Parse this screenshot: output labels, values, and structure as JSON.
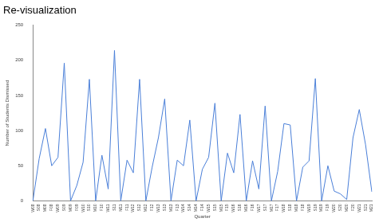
{
  "chart_data": {
    "type": "line",
    "title": "Re-visualization",
    "x_label": "Quarter",
    "y_label": "Number of Students Dismissed",
    "categories": [
      "W08",
      "S08",
      "M08",
      "F08",
      "W09",
      "S09",
      "M09",
      "F09",
      "W10",
      "S10",
      "M10",
      "F10",
      "W11",
      "S11",
      "M11",
      "F11",
      "W12",
      "S12",
      "M12",
      "F12",
      "W13",
      "S13",
      "M13",
      "F13",
      "W14",
      "S14",
      "M14",
      "F14",
      "W15",
      "S15",
      "M15",
      "F15",
      "W16",
      "S16",
      "M16",
      "F16",
      "W17",
      "S17",
      "M17",
      "F17",
      "W18",
      "S18",
      "M18",
      "F18",
      "W19",
      "S19",
      "M19",
      "F19",
      "W20",
      "S20",
      "M20",
      "F20",
      "W21",
      "S21",
      "M21"
    ],
    "values": [
      0,
      60,
      103,
      50,
      62,
      196,
      0,
      22,
      55,
      173,
      0,
      65,
      17,
      214,
      0,
      58,
      40,
      173,
      0,
      48,
      90,
      145,
      0,
      58,
      50,
      115,
      0,
      45,
      62,
      139,
      0,
      68,
      40,
      123,
      0,
      57,
      17,
      135,
      0,
      42,
      110,
      108,
      0,
      48,
      57,
      174,
      0,
      50,
      14,
      10,
      2,
      90,
      130,
      80,
      13
    ],
    "color": "#4a7fd8",
    "ylim": [
      0,
      250
    ],
    "yticks": [
      0,
      50,
      100,
      150,
      200,
      250
    ],
    "grid": false
  }
}
